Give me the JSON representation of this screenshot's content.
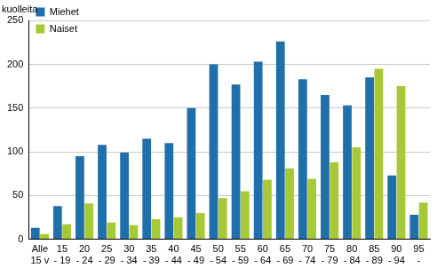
{
  "chart_data": {
    "type": "bar",
    "ylabel": "kuolleita",
    "categories": [
      [
        "Alle",
        "15 v"
      ],
      [
        "15",
        "- 19"
      ],
      [
        "20",
        "- 24"
      ],
      [
        "25",
        "- 29"
      ],
      [
        "30",
        "- 34"
      ],
      [
        "35",
        "- 39"
      ],
      [
        "40",
        "- 44"
      ],
      [
        "45",
        "- 49"
      ],
      [
        "50",
        "- 54"
      ],
      [
        "55",
        "- 59"
      ],
      [
        "60",
        "- 64"
      ],
      [
        "65",
        "- 69"
      ],
      [
        "70",
        "- 74"
      ],
      [
        "75",
        "- 79"
      ],
      [
        "80",
        "- 84"
      ],
      [
        "85",
        "- 89"
      ],
      [
        "90",
        "- 94"
      ],
      [
        "95",
        "-"
      ]
    ],
    "series": [
      {
        "name": "Miehet",
        "color": "#1f6fab",
        "values": [
          13,
          38,
          95,
          108,
          99,
          115,
          110,
          150,
          200,
          177,
          203,
          226,
          183,
          165,
          153,
          185,
          73,
          28
        ]
      },
      {
        "name": "Naiset",
        "color": "#a8c936",
        "values": [
          6,
          17,
          41,
          19,
          16,
          23,
          25,
          30,
          47,
          55,
          68,
          81,
          69,
          88,
          105,
          195,
          175,
          42
        ]
      }
    ],
    "ylim": [
      0,
      250
    ],
    "yticks": [
      0,
      50,
      100,
      150,
      200,
      250
    ],
    "grid": true,
    "legend": "upper left"
  }
}
